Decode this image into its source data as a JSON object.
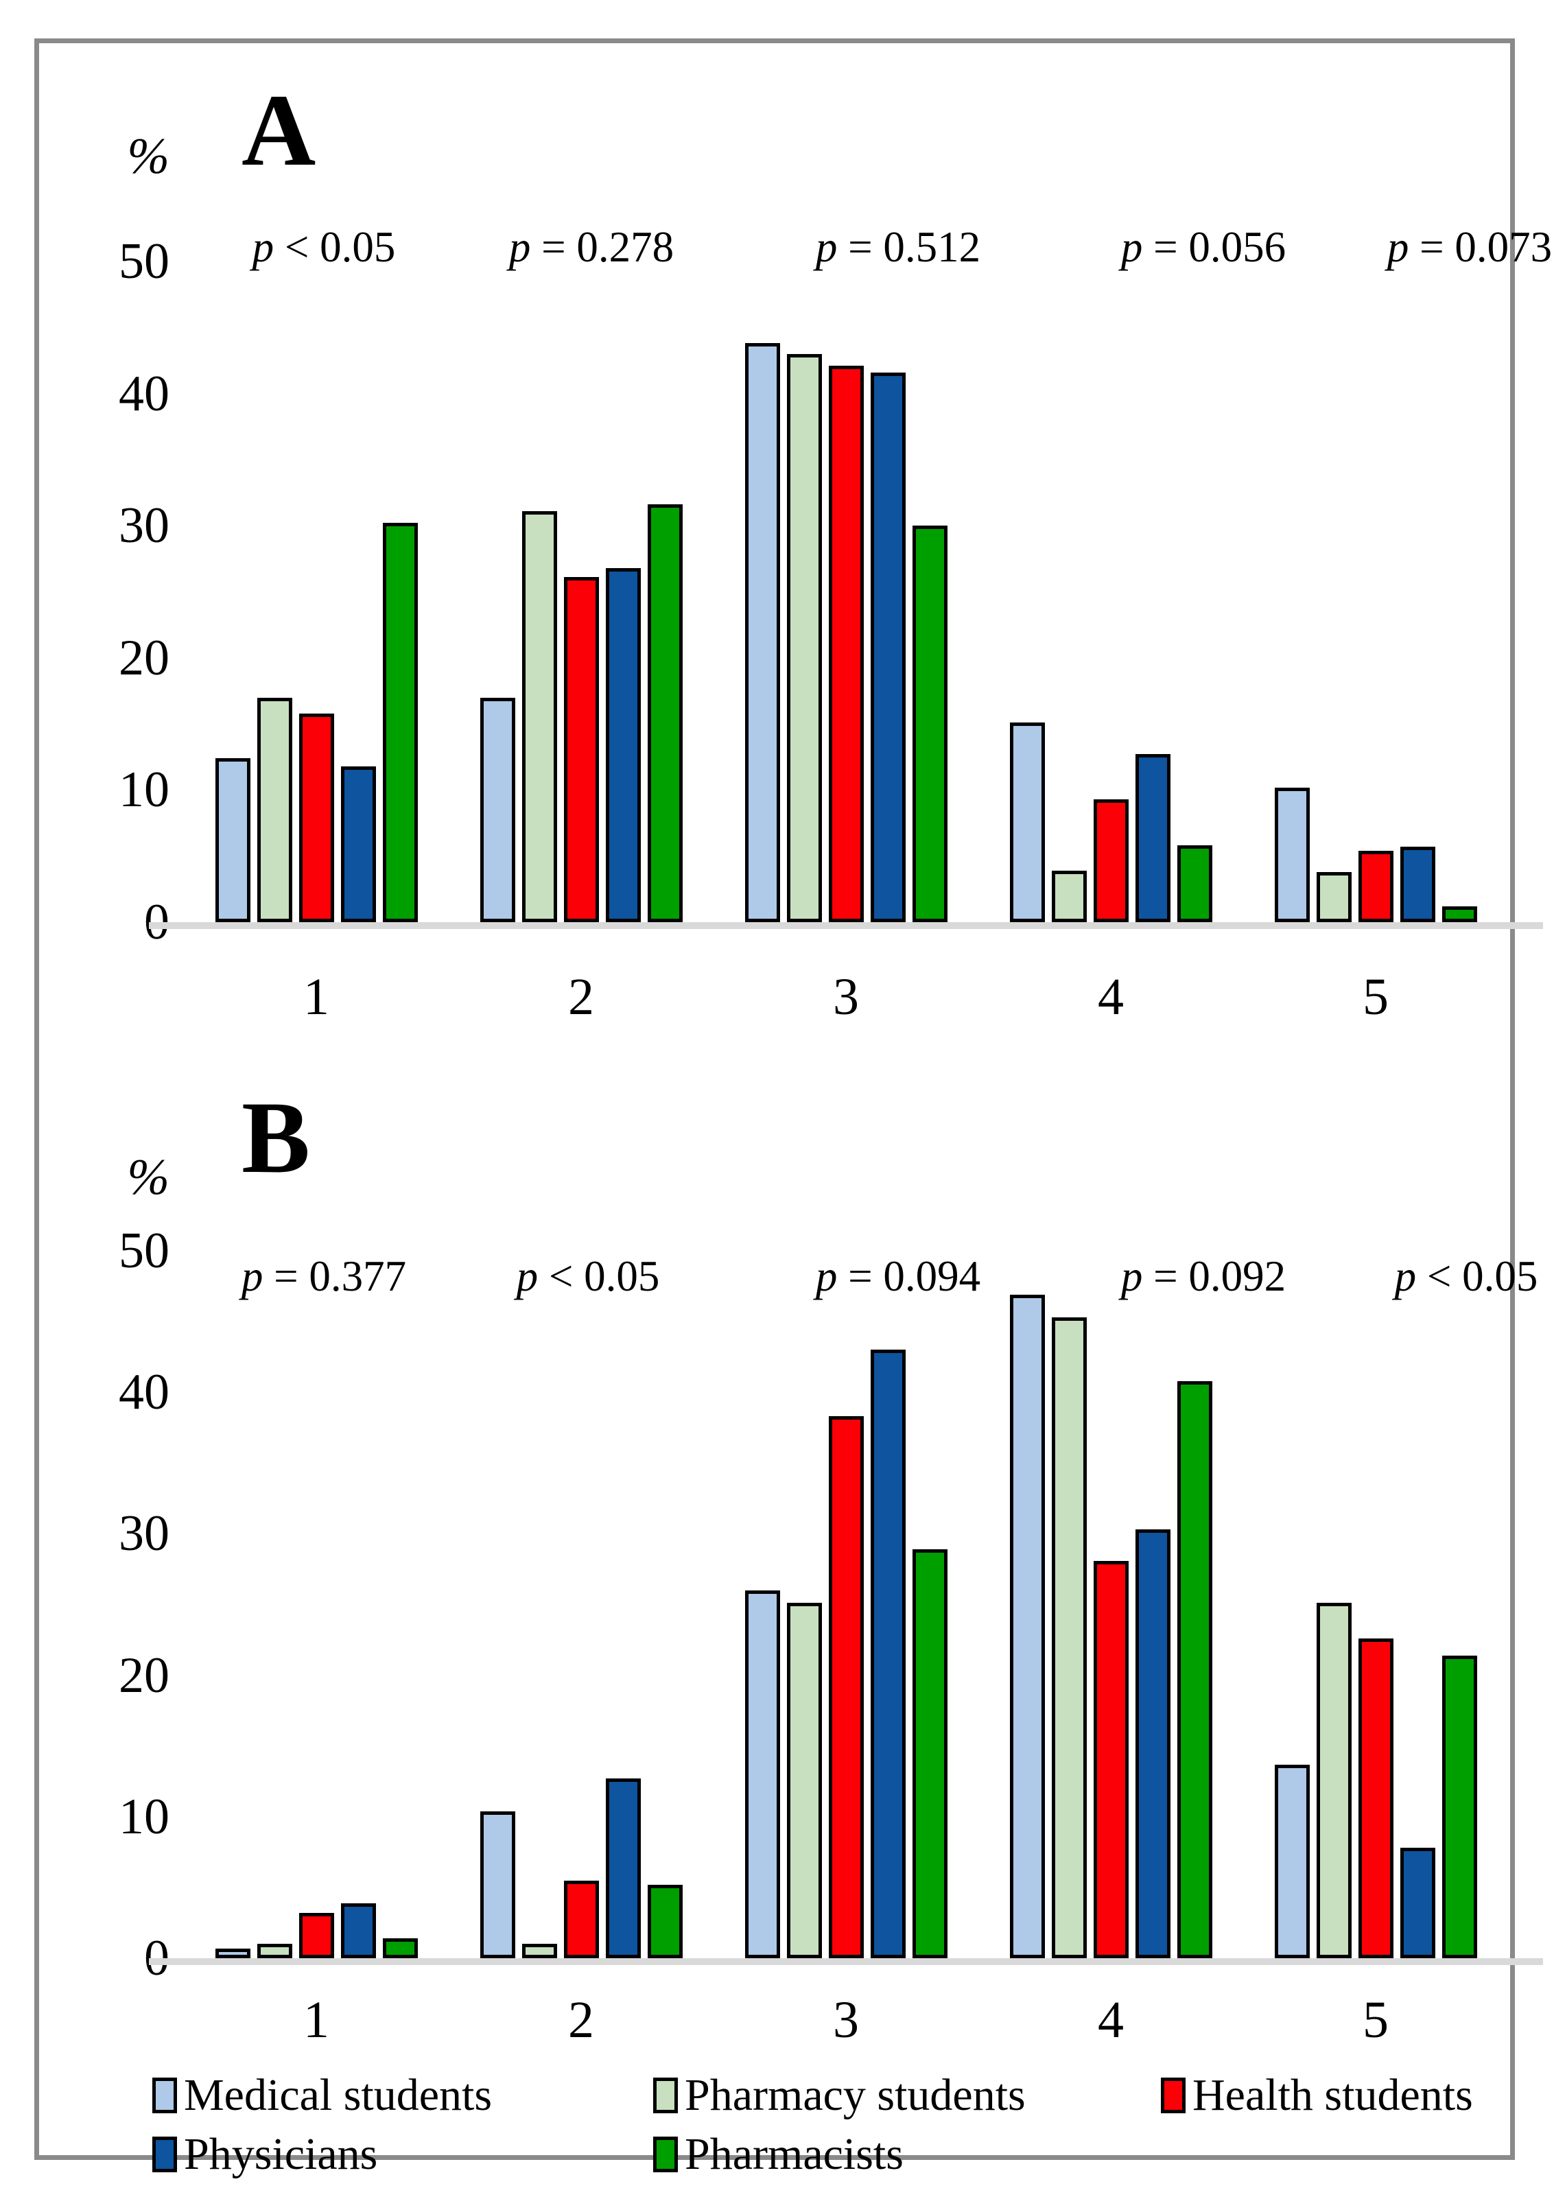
{
  "figure": {
    "y_axis_unit": "%",
    "panel_a_label": "A",
    "panel_b_label": "B"
  },
  "legend": {
    "items": [
      {
        "label": "Medical students",
        "color": "#AFC9E9"
      },
      {
        "label": "Pharmacy students",
        "color": "#C8E0BF"
      },
      {
        "label": "Health students",
        "color": "#FB0007"
      },
      {
        "label": "Physicians",
        "color": "#0E549F"
      },
      {
        "label": "Pharmacists",
        "color": "#009F00"
      }
    ]
  },
  "chart_data": [
    {
      "type": "bar",
      "title": "A",
      "ylabel": "%",
      "ylim": [
        0,
        50
      ],
      "yticks": [
        0,
        10,
        20,
        30,
        40,
        50
      ],
      "grid": false,
      "legend_position": "bottom",
      "categories": [
        "1",
        "2",
        "3",
        "4",
        "5"
      ],
      "annotations": [
        "p < 0.05",
        "p = 0.278",
        "p = 0.512",
        "p = 0.056",
        "p = 0.073"
      ],
      "series": [
        {
          "name": "Medical students",
          "color": "#AFC9E9",
          "values": [
            12.4,
            17.0,
            43.8,
            15.1,
            10.2
          ]
        },
        {
          "name": "Pharmacy students",
          "color": "#C8E0BF",
          "values": [
            17.0,
            31.1,
            43.0,
            3.9,
            3.8
          ]
        },
        {
          "name": "Health students",
          "color": "#FB0007",
          "values": [
            15.8,
            26.1,
            42.1,
            9.3,
            5.4
          ]
        },
        {
          "name": "Physicians",
          "color": "#0E549F",
          "values": [
            11.8,
            26.8,
            41.6,
            12.7,
            5.7
          ]
        },
        {
          "name": "Pharmacists",
          "color": "#009F00",
          "values": [
            30.2,
            31.6,
            30.0,
            5.8,
            1.2
          ]
        }
      ]
    },
    {
      "type": "bar",
      "title": "B",
      "ylabel": "%",
      "ylim": [
        0,
        50
      ],
      "yticks": [
        0,
        10,
        20,
        30,
        40,
        50
      ],
      "grid": false,
      "legend_position": "bottom",
      "categories": [
        "1",
        "2",
        "3",
        "4",
        "5"
      ],
      "annotations": [
        "p = 0.377",
        "p < 0.05",
        "p = 0.094",
        "p = 0.092",
        "p < 0.05"
      ],
      "series": [
        {
          "name": "Medical students",
          "color": "#AFC9E9",
          "values": [
            0.7,
            10.4,
            26.0,
            46.9,
            13.7
          ]
        },
        {
          "name": "Pharmacy students",
          "color": "#C8E0BF",
          "values": [
            1.0,
            1.0,
            25.1,
            45.3,
            25.1
          ]
        },
        {
          "name": "Health students",
          "color": "#FB0007",
          "values": [
            3.2,
            5.5,
            38.3,
            28.1,
            22.6
          ]
        },
        {
          "name": "Physicians",
          "color": "#0E549F",
          "values": [
            3.9,
            12.7,
            43.0,
            30.3,
            7.8
          ]
        },
        {
          "name": "Pharmacists",
          "color": "#009F00",
          "values": [
            1.4,
            5.2,
            28.9,
            40.8,
            21.4
          ]
        }
      ]
    }
  ]
}
